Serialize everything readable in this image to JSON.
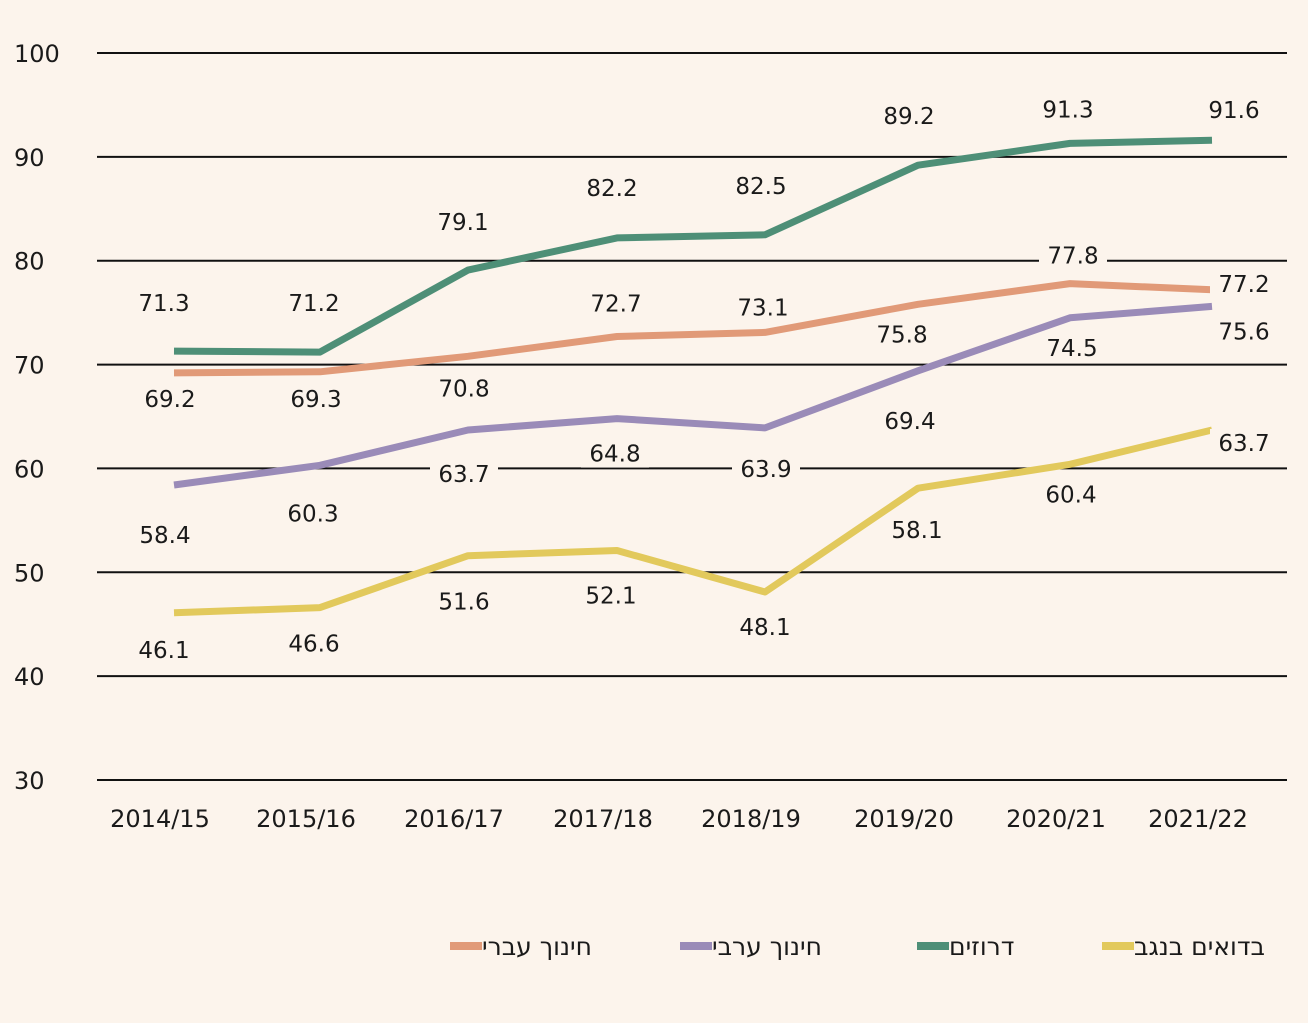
{
  "chart_data": {
    "type": "line",
    "title": "",
    "xlabel": "",
    "ylabel": "",
    "ylim": [
      30,
      100
    ],
    "yticks": [
      "100",
      "90",
      "80",
      "70",
      "60",
      "50",
      "40",
      "30"
    ],
    "categories": [
      "2014/15",
      "2015/16",
      "2016/17",
      "2017/18",
      "2018/19",
      "2019/20",
      "2020/21",
      "2021/22"
    ],
    "grid": true,
    "legend_position": "bottom",
    "series": [
      {
        "name": "חינוך עברי",
        "color": "#e19a78",
        "values": [
          69.2,
          69.3,
          70.8,
          72.7,
          73.1,
          75.8,
          77.8,
          77.2
        ]
      },
      {
        "name": "חינוך ערבי",
        "color": "#9a8bb8",
        "values": [
          58.4,
          60.3,
          63.7,
          64.8,
          63.9,
          69.4,
          74.5,
          75.6
        ]
      },
      {
        "name": "דרוזים",
        "color": "#4e8f77",
        "values": [
          71.3,
          71.2,
          79.1,
          82.2,
          82.5,
          89.2,
          91.3,
          91.6
        ]
      },
      {
        "name": "בדואים בנגב",
        "color": "#e2c95c",
        "values": [
          46.1,
          46.6,
          51.6,
          52.1,
          48.1,
          58.1,
          60.4,
          63.7
        ]
      }
    ]
  }
}
